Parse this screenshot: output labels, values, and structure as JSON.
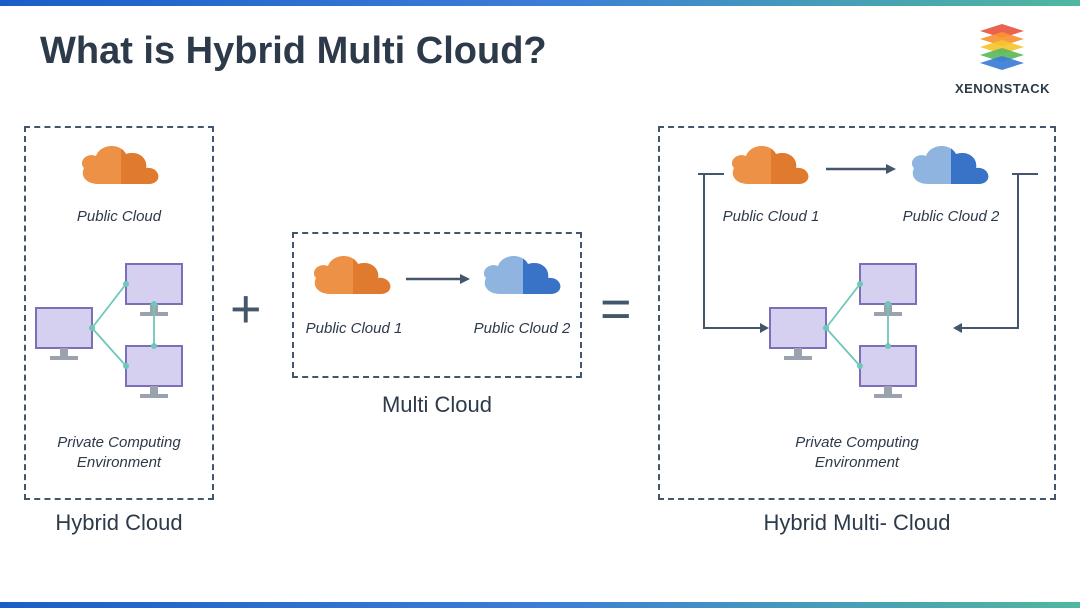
{
  "title": "What is Hybrid Multi Cloud?",
  "brand": "XENONSTACK",
  "brand_layers": [
    "#e85642",
    "#f79433",
    "#f4c430",
    "#5cb85c",
    "#3b7dd8"
  ],
  "colors": {
    "border": "#44566c",
    "text": "#2d3a4a",
    "cloud_orange_left": "#ed9147",
    "cloud_orange_right": "#e07a2f",
    "cloud_blue_left": "#8fb4e0",
    "cloud_blue_right": "#3873c7",
    "monitor_fill": "#d5d0ef",
    "monitor_stroke": "#7a6fb8",
    "monitor_stand": "#9aa3ad",
    "arrow": "#44566c",
    "conn_teal": "#6fc7b8"
  },
  "hybrid": {
    "panel_title": "Hybrid Cloud",
    "public_label": "Public Cloud",
    "private_label_1": "Private Computing",
    "private_label_2": "Environment"
  },
  "multi": {
    "panel_title": "Multi Cloud",
    "cloud1_label": "Public Cloud 1",
    "cloud2_label": "Public Cloud 2"
  },
  "result": {
    "panel_title": "Hybrid Multi- Cloud",
    "cloud1_label": "Public Cloud 1",
    "cloud2_label": "Public Cloud 2",
    "private_label_1": "Private Computing",
    "private_label_2": "Environment"
  },
  "operators": {
    "plus": "+",
    "equals": "="
  }
}
